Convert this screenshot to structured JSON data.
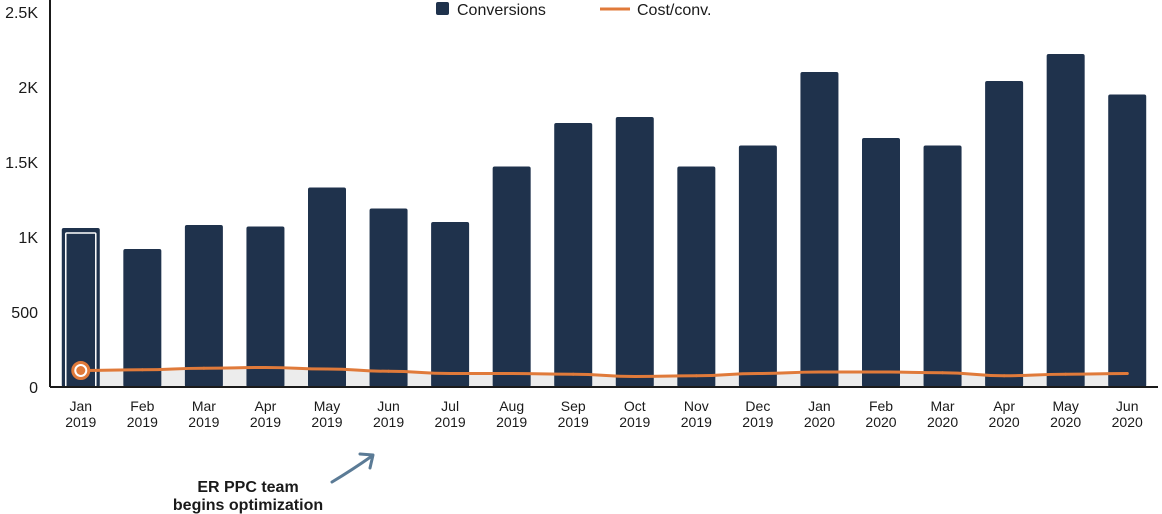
{
  "chart_data": {
    "type": "bar",
    "categories": [
      [
        "Jan",
        "2019"
      ],
      [
        "Feb",
        "2019"
      ],
      [
        "Mar",
        "2019"
      ],
      [
        "Apr",
        "2019"
      ],
      [
        "May",
        "2019"
      ],
      [
        "Jun",
        "2019"
      ],
      [
        "Jul",
        "2019"
      ],
      [
        "Aug",
        "2019"
      ],
      [
        "Sep",
        "2019"
      ],
      [
        "Oct",
        "2019"
      ],
      [
        "Nov",
        "2019"
      ],
      [
        "Dec",
        "2019"
      ],
      [
        "Jan",
        "2020"
      ],
      [
        "Feb",
        "2020"
      ],
      [
        "Mar",
        "2020"
      ],
      [
        "Apr",
        "2020"
      ],
      [
        "May",
        "2020"
      ],
      [
        "Jun",
        "2020"
      ]
    ],
    "series": [
      {
        "name": "Conversions",
        "type": "bar",
        "color": "#1f324c",
        "values": [
          1060,
          920,
          1080,
          1070,
          1330,
          1190,
          1100,
          1470,
          1760,
          1800,
          1470,
          1610,
          2100,
          1660,
          1610,
          2040,
          2220,
          1950
        ]
      },
      {
        "name": "Cost/conv.",
        "type": "line",
        "color": "#e07a3a",
        "values": [
          110,
          115,
          125,
          130,
          120,
          105,
          90,
          90,
          85,
          70,
          75,
          90,
          100,
          100,
          95,
          75,
          85,
          90
        ]
      }
    ],
    "y_ticks": [
      "0",
      "500",
      "1K",
      "1.5K",
      "2K",
      "2.5K"
    ],
    "ylim": [
      0,
      2500
    ],
    "legend_position": "top-center",
    "grid": false,
    "highlight_index": 0,
    "annotation": {
      "lines": [
        "ER PPC team",
        "begins optimization"
      ],
      "arrow_color": "#5b7b96"
    }
  }
}
